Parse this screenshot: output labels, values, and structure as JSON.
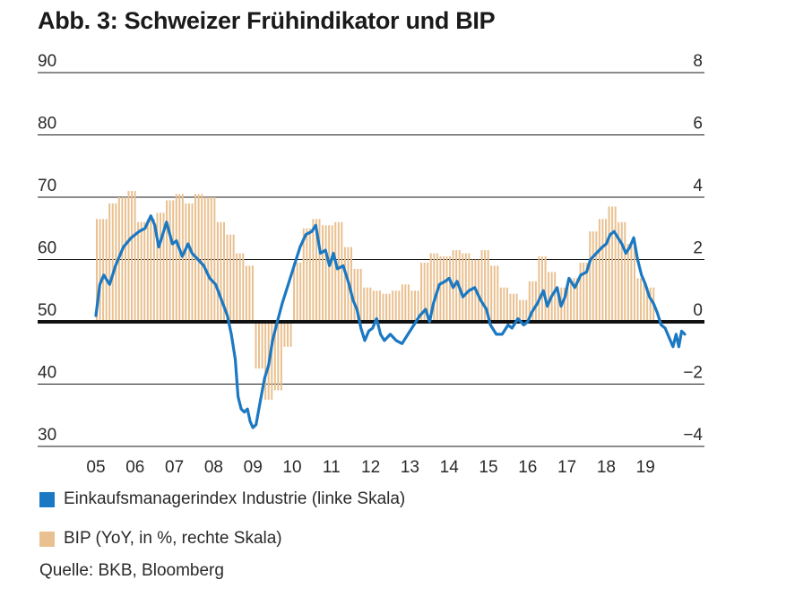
{
  "title": "Abb. 3: Schweizer Frühindikator und BIP",
  "source": "Quelle: BKB, Bloomberg",
  "colors": {
    "pmi": "#1b78c2",
    "gdp": "#e9c08f",
    "zero": "#111111",
    "grid": "#1a1a1a",
    "text": "#2a2a2a"
  },
  "legend": [
    {
      "label": "Einkaufsmanagerindex Industrie (linke Skala)",
      "color": "#1b78c2"
    },
    {
      "label": "BIP (YoY, in %, rechte Skala)",
      "color": "#e9c08f"
    }
  ],
  "chart_data": {
    "type": "bar+line",
    "title": "Abb. 3: Schweizer Frühindikator und BIP",
    "x_ticks": [
      "05",
      "06",
      "07",
      "08",
      "09",
      "10",
      "11",
      "12",
      "13",
      "14",
      "15",
      "16",
      "17",
      "18",
      "19"
    ],
    "left_axis": {
      "range": [
        30,
        90
      ],
      "ticks": [
        "30",
        "40",
        "50",
        "60",
        "70",
        "80",
        "90"
      ]
    },
    "right_axis": {
      "range": [
        -4,
        8
      ],
      "ticks": [
        "−4",
        "−2",
        "0",
        "2",
        "4",
        "6",
        "8"
      ]
    },
    "grid": true,
    "legend_position": "bottom-left",
    "series": [
      {
        "name": "Einkaufsmanagerindex Industrie (linke Skala)",
        "axis": "left",
        "kind": "line",
        "points": [
          [
            2005.0,
            51.0
          ],
          [
            2005.1,
            56.0
          ],
          [
            2005.2,
            57.5
          ],
          [
            2005.35,
            56.0
          ],
          [
            2005.5,
            59.0
          ],
          [
            2005.7,
            62.0
          ],
          [
            2005.9,
            63.5
          ],
          [
            2006.1,
            64.5
          ],
          [
            2006.25,
            65.0
          ],
          [
            2006.4,
            67.0
          ],
          [
            2006.5,
            65.5
          ],
          [
            2006.6,
            62.0
          ],
          [
            2006.7,
            64.0
          ],
          [
            2006.8,
            66.0
          ],
          [
            2006.95,
            62.5
          ],
          [
            2007.05,
            63.0
          ],
          [
            2007.2,
            60.5
          ],
          [
            2007.35,
            62.5
          ],
          [
            2007.45,
            61.0
          ],
          [
            2007.6,
            60.0
          ],
          [
            2007.75,
            59.0
          ],
          [
            2007.9,
            57.0
          ],
          [
            2008.05,
            56.0
          ],
          [
            2008.2,
            53.5
          ],
          [
            2008.35,
            51.0
          ],
          [
            2008.45,
            48.0
          ],
          [
            2008.55,
            44.0
          ],
          [
            2008.62,
            38.0
          ],
          [
            2008.7,
            36.0
          ],
          [
            2008.78,
            35.5
          ],
          [
            2008.86,
            36.0
          ],
          [
            2008.93,
            34.0
          ],
          [
            2009.0,
            33.0
          ],
          [
            2009.08,
            33.5
          ],
          [
            2009.18,
            37.0
          ],
          [
            2009.3,
            41.0
          ],
          [
            2009.4,
            43.0
          ],
          [
            2009.5,
            47.0
          ],
          [
            2009.62,
            50.0
          ],
          [
            2009.75,
            53.0
          ],
          [
            2009.9,
            56.0
          ],
          [
            2010.05,
            59.0
          ],
          [
            2010.2,
            62.0
          ],
          [
            2010.35,
            64.0
          ],
          [
            2010.5,
            64.5
          ],
          [
            2010.6,
            65.5
          ],
          [
            2010.72,
            61.0
          ],
          [
            2010.85,
            61.5
          ],
          [
            2010.95,
            59.0
          ],
          [
            2011.05,
            61.0
          ],
          [
            2011.15,
            58.5
          ],
          [
            2011.3,
            59.0
          ],
          [
            2011.45,
            56.0
          ],
          [
            2011.55,
            53.5
          ],
          [
            2011.65,
            52.0
          ],
          [
            2011.75,
            49.0
          ],
          [
            2011.85,
            47.0
          ],
          [
            2011.95,
            48.5
          ],
          [
            2012.05,
            49.0
          ],
          [
            2012.15,
            50.5
          ],
          [
            2012.25,
            48.0
          ],
          [
            2012.35,
            47.0
          ],
          [
            2012.5,
            48.0
          ],
          [
            2012.65,
            47.0
          ],
          [
            2012.8,
            46.5
          ],
          [
            2012.95,
            48.0
          ],
          [
            2013.1,
            49.5
          ],
          [
            2013.25,
            51.0
          ],
          [
            2013.4,
            52.0
          ],
          [
            2013.5,
            50.0
          ],
          [
            2013.6,
            53.0
          ],
          [
            2013.75,
            56.0
          ],
          [
            2013.9,
            56.5
          ],
          [
            2014.0,
            57.0
          ],
          [
            2014.1,
            55.5
          ],
          [
            2014.2,
            56.5
          ],
          [
            2014.35,
            54.0
          ],
          [
            2014.5,
            55.0
          ],
          [
            2014.65,
            55.5
          ],
          [
            2014.8,
            53.5
          ],
          [
            2014.95,
            52.0
          ],
          [
            2015.05,
            49.5
          ],
          [
            2015.2,
            48.0
          ],
          [
            2015.35,
            48.0
          ],
          [
            2015.5,
            49.5
          ],
          [
            2015.6,
            49.0
          ],
          [
            2015.75,
            50.5
          ],
          [
            2015.9,
            49.5
          ],
          [
            2016.0,
            50.0
          ],
          [
            2016.1,
            51.5
          ],
          [
            2016.25,
            53.0
          ],
          [
            2016.4,
            55.0
          ],
          [
            2016.5,
            52.5
          ],
          [
            2016.6,
            54.0
          ],
          [
            2016.75,
            55.5
          ],
          [
            2016.85,
            52.5
          ],
          [
            2016.95,
            54.0
          ],
          [
            2017.05,
            57.0
          ],
          [
            2017.2,
            55.5
          ],
          [
            2017.35,
            57.5
          ],
          [
            2017.5,
            58.0
          ],
          [
            2017.6,
            60.0
          ],
          [
            2017.75,
            61.0
          ],
          [
            2017.9,
            62.0
          ],
          [
            2018.0,
            62.5
          ],
          [
            2018.1,
            64.0
          ],
          [
            2018.2,
            64.5
          ],
          [
            2018.3,
            63.5
          ],
          [
            2018.4,
            62.5
          ],
          [
            2018.5,
            61.0
          ],
          [
            2018.6,
            62.0
          ],
          [
            2018.7,
            63.5
          ],
          [
            2018.8,
            60.0
          ],
          [
            2018.9,
            57.5
          ],
          [
            2019.0,
            56.0
          ],
          [
            2019.1,
            54.0
          ],
          [
            2019.2,
            53.0
          ],
          [
            2019.3,
            51.5
          ],
          [
            2019.4,
            49.5
          ],
          [
            2019.5,
            49.0
          ],
          [
            2019.6,
            47.5
          ],
          [
            2019.7,
            46.0
          ],
          [
            2019.78,
            48.0
          ],
          [
            2019.85,
            46.0
          ],
          [
            2019.92,
            48.5
          ],
          [
            2020.0,
            48.0
          ]
        ]
      },
      {
        "name": "BIP (YoY, in %, rechte Skala)",
        "axis": "right",
        "kind": "bar",
        "points": [
          [
            2005.0,
            3.3
          ],
          [
            2005.25,
            3.8
          ],
          [
            2005.5,
            4.0
          ],
          [
            2005.75,
            4.2
          ],
          [
            2006.0,
            3.2
          ],
          [
            2006.25,
            3.3
          ],
          [
            2006.5,
            3.5
          ],
          [
            2006.75,
            3.9
          ],
          [
            2007.0,
            4.1
          ],
          [
            2007.25,
            3.8
          ],
          [
            2007.5,
            4.1
          ],
          [
            2007.75,
            4.0
          ],
          [
            2008.0,
            3.2
          ],
          [
            2008.25,
            2.8
          ],
          [
            2008.5,
            2.2
          ],
          [
            2008.75,
            1.8
          ],
          [
            2009.0,
            -1.5
          ],
          [
            2009.25,
            -2.5
          ],
          [
            2009.5,
            -2.2
          ],
          [
            2009.75,
            -0.8
          ],
          [
            2010.0,
            1.9
          ],
          [
            2010.25,
            3.0
          ],
          [
            2010.5,
            3.3
          ],
          [
            2010.75,
            3.1
          ],
          [
            2011.0,
            3.2
          ],
          [
            2011.25,
            2.4
          ],
          [
            2011.5,
            1.7
          ],
          [
            2011.75,
            1.1
          ],
          [
            2012.0,
            1.0
          ],
          [
            2012.25,
            0.9
          ],
          [
            2012.5,
            1.0
          ],
          [
            2012.75,
            1.2
          ],
          [
            2013.0,
            1.0
          ],
          [
            2013.25,
            1.9
          ],
          [
            2013.5,
            2.2
          ],
          [
            2013.75,
            2.1
          ],
          [
            2014.0,
            2.3
          ],
          [
            2014.25,
            2.2
          ],
          [
            2014.5,
            2.0
          ],
          [
            2014.75,
            2.3
          ],
          [
            2015.0,
            1.8
          ],
          [
            2015.25,
            1.1
          ],
          [
            2015.5,
            0.9
          ],
          [
            2015.75,
            0.7
          ],
          [
            2016.0,
            1.3
          ],
          [
            2016.25,
            2.1
          ],
          [
            2016.5,
            1.6
          ],
          [
            2016.75,
            1.1
          ],
          [
            2017.0,
            1.4
          ],
          [
            2017.25,
            1.9
          ],
          [
            2017.5,
            2.9
          ],
          [
            2017.75,
            3.3
          ],
          [
            2018.0,
            3.7
          ],
          [
            2018.25,
            3.2
          ],
          [
            2018.5,
            2.5
          ],
          [
            2018.75,
            1.4
          ],
          [
            2019.0,
            1.1
          ]
        ]
      }
    ]
  }
}
